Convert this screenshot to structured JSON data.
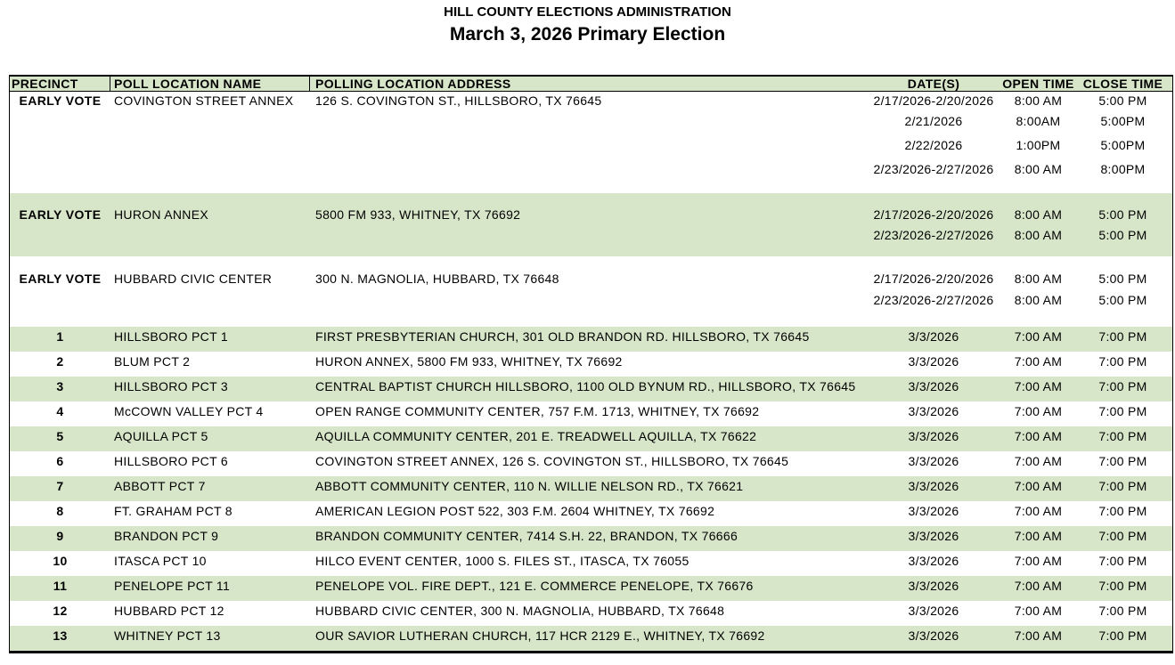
{
  "title": "HILL COUNTY ELECTIONS ADMINISTRATION",
  "subtitle": "March 3, 2026 Primary Election",
  "colors": {
    "row_green": "#d7e6c9",
    "header_green": "#d7e6c9",
    "border": "#000000",
    "text": "#000000"
  },
  "columns": [
    "PRECINCT",
    "POLL LOCATION NAME",
    "POLLING LOCATION ADDRESS",
    "DATE(S)",
    "OPEN TIME",
    "CLOSE TIME"
  ],
  "early_vote": [
    {
      "precinct": "EARLY VOTE",
      "name": "COVINGTON STREET ANNEX",
      "address": "126 S. COVINGTON ST., HILLSBORO, TX 76645",
      "schedule": [
        {
          "dates": "2/17/2026-2/20/2026",
          "open": "8:00 AM",
          "close": "5:00 PM"
        },
        {
          "dates": "2/21/2026",
          "open": "8:00AM",
          "close": "5:00PM"
        },
        {
          "dates": "2/22/2026",
          "open": "1:00PM",
          "close": "5:00PM"
        },
        {
          "dates": "2/23/2026-2/27/2026",
          "open": "8:00 AM",
          "close": "8:00PM"
        }
      ]
    },
    {
      "precinct": "EARLY VOTE",
      "name": "HURON ANNEX",
      "address": "5800 FM 933, WHITNEY, TX 76692",
      "schedule": [
        {
          "dates": "2/17/2026-2/20/2026",
          "open": "8:00 AM",
          "close": "5:00 PM"
        },
        {
          "dates": "2/23/2026-2/27/2026",
          "open": "8:00 AM",
          "close": "5:00 PM"
        }
      ]
    },
    {
      "precinct": "EARLY VOTE",
      "name": "HUBBARD CIVIC CENTER",
      "address": "300 N. MAGNOLIA, HUBBARD, TX 76648",
      "schedule": [
        {
          "dates": "2/17/2026-2/20/2026",
          "open": "8:00 AM",
          "close": "5:00 PM"
        },
        {
          "dates": "2/23/2026-2/27/2026",
          "open": "8:00 AM",
          "close": "5:00 PM"
        }
      ]
    }
  ],
  "precincts": [
    {
      "precinct": "1",
      "name": "HILLSBORO PCT 1",
      "address": "FIRST PRESBYTERIAN CHURCH, 301 OLD BRANDON RD. HILLSBORO, TX 76645",
      "dates": "3/3/2026",
      "open": "7:00 AM",
      "close": "7:00 PM"
    },
    {
      "precinct": "2",
      "name": "BLUM PCT 2",
      "address": "HURON ANNEX, 5800 FM 933, WHITNEY, TX 76692",
      "dates": "3/3/2026",
      "open": "7:00 AM",
      "close": "7:00 PM"
    },
    {
      "precinct": "3",
      "name": "HILLSBORO PCT 3",
      "address": "CENTRAL BAPTIST CHURCH HILLSBORO, 1100 OLD BYNUM RD., HILLSBORO, TX 76645",
      "dates": "3/3/2026",
      "open": "7:00 AM",
      "close": "7:00 PM"
    },
    {
      "precinct": "4",
      "name": "McCOWN VALLEY PCT 4",
      "address": "OPEN RANGE COMMUNITY CENTER, 757 F.M. 1713, WHITNEY, TX 76692",
      "dates": "3/3/2026",
      "open": "7:00 AM",
      "close": "7:00 PM"
    },
    {
      "precinct": "5",
      "name": "AQUILLA PCT 5",
      "address": "AQUILLA COMMUNITY CENTER, 201 E. TREADWELL AQUILLA, TX 76622",
      "dates": "3/3/2026",
      "open": "7:00 AM",
      "close": "7:00 PM"
    },
    {
      "precinct": "6",
      "name": "HILLSBORO PCT 6",
      "address": "COVINGTON STREET ANNEX, 126 S. COVINGTON ST., HILLSBORO, TX 76645",
      "dates": "3/3/2026",
      "open": "7:00 AM",
      "close": "7:00 PM"
    },
    {
      "precinct": "7",
      "name": "ABBOTT PCT 7",
      "address": "ABBOTT COMMUNITY CENTER, 110 N. WILLIE NELSON RD., TX 76621",
      "dates": "3/3/2026",
      "open": "7:00 AM",
      "close": "7:00 PM"
    },
    {
      "precinct": "8",
      "name": "FT. GRAHAM PCT 8",
      "address": "AMERICAN LEGION POST 522, 303 F.M. 2604 WHITNEY, TX 76692",
      "dates": "3/3/2026",
      "open": "7:00 AM",
      "close": "7:00 PM"
    },
    {
      "precinct": "9",
      "name": "BRANDON PCT 9",
      "address": "BRANDON COMMUNITY CENTER, 7414 S.H. 22, BRANDON, TX 76666",
      "dates": "3/3/2026",
      "open": "7:00 AM",
      "close": "7:00 PM"
    },
    {
      "precinct": "10",
      "name": "ITASCA PCT 10",
      "address": "HILCO EVENT CENTER, 1000 S. FILES ST., ITASCA, TX 76055",
      "dates": "3/3/2026",
      "open": "7:00 AM",
      "close": "7:00 PM"
    },
    {
      "precinct": "11",
      "name": "PENELOPE PCT 11",
      "address": "PENELOPE VOL. FIRE DEPT., 121 E. COMMERCE PENELOPE, TX 76676",
      "dates": "3/3/2026",
      "open": "7:00 AM",
      "close": "7:00 PM"
    },
    {
      "precinct": "12",
      "name": "HUBBARD PCT 12",
      "address": "HUBBARD CIVIC CENTER, 300 N. MAGNOLIA, HUBBARD, TX 76648",
      "dates": "3/3/2026",
      "open": "7:00 AM",
      "close": "7:00 PM"
    },
    {
      "precinct": "13",
      "name": "WHITNEY PCT 13",
      "address": "OUR SAVIOR LUTHERAN CHURCH, 117 HCR 2129 E., WHITNEY, TX 76692",
      "dates": "3/3/2026",
      "open": "7:00 AM",
      "close": "7:00 PM"
    }
  ]
}
